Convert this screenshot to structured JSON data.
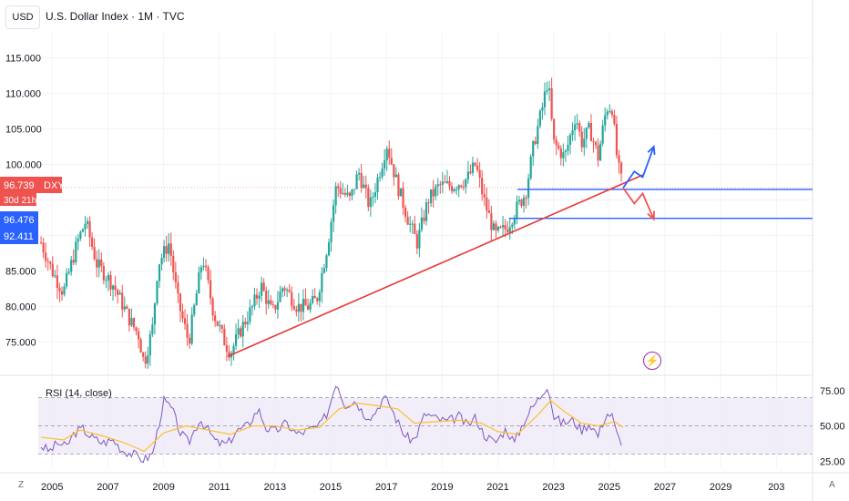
{
  "header": {
    "currency_button": "USD",
    "title": "U.S. Dollar Index · 1M · TVC"
  },
  "toolbar": {
    "z_label": "Z",
    "a_label": "A",
    "alert_icon": "lightning-icon"
  },
  "price_labels": {
    "current": {
      "value": "96.739",
      "ticker": "DXY",
      "countdown": "30d 21h"
    },
    "blue_a": "96.476",
    "blue_b": "92.411"
  },
  "colors": {
    "up": "#26a69a",
    "down": "#ef5350",
    "trendline": "#e53935",
    "level": "#2962ff",
    "rsi": "#7e57c2",
    "rsi_ma": "#fbc02d",
    "rsi_band": "#ede7f6",
    "arrow_up": "#2962ff",
    "arrow_down": "#ef5350"
  },
  "chart_data": [
    {
      "type": "candlestick",
      "title": "U.S. Dollar Index · 1M · TVC",
      "y_ticks": [
        75,
        80,
        85,
        90,
        95,
        100,
        105,
        110,
        115
      ],
      "y_tick_labels": [
        "75.000",
        "80.000",
        "85.000",
        "90.000",
        "95.000",
        "100.000",
        "105.000",
        "110.000",
        "115.000"
      ],
      "x_ticks": [
        "2005",
        "2007",
        "2009",
        "2011",
        "2013",
        "2015",
        "2017",
        "2019",
        "2021",
        "2023",
        "2025",
        "2027",
        "2029",
        "203"
      ],
      "ylim": [
        70.6,
        118.5
      ],
      "xlim": [
        2004.5,
        2032.3
      ],
      "close_path": [
        [
          2004.6,
          89
        ],
        [
          2005.0,
          85
        ],
        [
          2005.4,
          82
        ],
        [
          2005.9,
          89
        ],
        [
          2006.2,
          92
        ],
        [
          2006.6,
          86
        ],
        [
          2007.2,
          83
        ],
        [
          2007.8,
          78
        ],
        [
          2008.1,
          76
        ],
        [
          2008.3,
          72
        ],
        [
          2008.6,
          77
        ],
        [
          2008.8,
          86
        ],
        [
          2009.2,
          89
        ],
        [
          2009.5,
          81
        ],
        [
          2009.9,
          75
        ],
        [
          2010.4,
          87
        ],
        [
          2010.8,
          79
        ],
        [
          2011.2,
          75
        ],
        [
          2011.4,
          73.5
        ],
        [
          2011.8,
          77
        ],
        [
          2012.2,
          80
        ],
        [
          2012.5,
          83
        ],
        [
          2012.9,
          79
        ],
        [
          2013.3,
          83
        ],
        [
          2013.8,
          80
        ],
        [
          2014.2,
          80
        ],
        [
          2014.5,
          81
        ],
        [
          2014.9,
          89
        ],
        [
          2015.2,
          97
        ],
        [
          2015.7,
          95
        ],
        [
          2016.0,
          99
        ],
        [
          2016.4,
          94
        ],
        [
          2016.9,
          101
        ],
        [
          2017.0,
          103
        ],
        [
          2017.4,
          97
        ],
        [
          2017.8,
          92
        ],
        [
          2018.1,
          89
        ],
        [
          2018.5,
          95
        ],
        [
          2018.9,
          97
        ],
        [
          2019.4,
          97
        ],
        [
          2019.9,
          98
        ],
        [
          2020.2,
          100
        ],
        [
          2020.5,
          95
        ],
        [
          2020.9,
          90
        ],
        [
          2021.3,
          91
        ],
        [
          2021.7,
          94
        ],
        [
          2022.0,
          96
        ],
        [
          2022.3,
          103
        ],
        [
          2022.6,
          108
        ],
        [
          2022.8,
          112
        ],
        [
          2023.0,
          103
        ],
        [
          2023.4,
          101
        ],
        [
          2023.8,
          107
        ],
        [
          2024.0,
          103
        ],
        [
          2024.3,
          105
        ],
        [
          2024.6,
          101
        ],
        [
          2024.9,
          108
        ],
        [
          2025.1,
          108
        ],
        [
          2025.3,
          100
        ],
        [
          2025.5,
          96.7
        ]
      ],
      "current_price": 96.739,
      "horizontal_levels": [
        96.476,
        92.411
      ],
      "trendline": {
        "from": [
          2011.3,
          73.0
        ],
        "to": [
          2026.2,
          98.5
        ]
      },
      "projection": {
        "up": [
          [
            2025.5,
            96.7
          ],
          [
            2025.9,
            99.0
          ],
          [
            2026.2,
            98.2
          ],
          [
            2026.6,
            102.5
          ]
        ],
        "down": [
          [
            2025.5,
            96.7
          ],
          [
            2025.9,
            94.5
          ],
          [
            2026.2,
            95.9
          ],
          [
            2026.6,
            92.3
          ]
        ]
      }
    },
    {
      "type": "line",
      "title": "RSI (14, close)",
      "y_ticks": [
        25,
        50,
        75
      ],
      "y_tick_labels": [
        "25.00",
        "50.00",
        "75.00"
      ],
      "bands": [
        30,
        50,
        70
      ],
      "ylim": [
        20,
        82
      ],
      "series": [
        {
          "values_path": [
            [
              2004.6,
              36
            ],
            [
              2004.9,
              32
            ],
            [
              2005.2,
              38
            ],
            [
              2005.5,
              35
            ],
            [
              2005.8,
              45
            ],
            [
              2006.1,
              48
            ],
            [
              2006.4,
              42
            ],
            [
              2006.8,
              38
            ],
            [
              2007.2,
              40
            ],
            [
              2007.5,
              33
            ],
            [
              2007.9,
              30
            ],
            [
              2008.3,
              26
            ],
            [
              2008.6,
              30
            ],
            [
              2008.8,
              48
            ],
            [
              2009.0,
              68
            ],
            [
              2009.3,
              62
            ],
            [
              2009.6,
              45
            ],
            [
              2009.9,
              38
            ],
            [
              2010.3,
              55
            ],
            [
              2010.6,
              47
            ],
            [
              2010.9,
              38
            ],
            [
              2011.3,
              37
            ],
            [
              2011.6,
              46
            ],
            [
              2012.0,
              50
            ],
            [
              2012.4,
              62
            ],
            [
              2012.7,
              48
            ],
            [
              2013.0,
              46
            ],
            [
              2013.4,
              52
            ],
            [
              2013.8,
              44
            ],
            [
              2014.2,
              47
            ],
            [
              2014.6,
              50
            ],
            [
              2014.9,
              60
            ],
            [
              2015.2,
              82
            ],
            [
              2015.5,
              65
            ],
            [
              2015.9,
              68
            ],
            [
              2016.2,
              58
            ],
            [
              2016.5,
              57
            ],
            [
              2016.9,
              70
            ],
            [
              2017.1,
              66
            ],
            [
              2017.4,
              53
            ],
            [
              2017.7,
              42
            ],
            [
              2018.0,
              40
            ],
            [
              2018.4,
              59
            ],
            [
              2018.8,
              55
            ],
            [
              2019.2,
              53
            ],
            [
              2019.6,
              57
            ],
            [
              2019.9,
              50
            ],
            [
              2020.2,
              56
            ],
            [
              2020.5,
              44
            ],
            [
              2020.9,
              38
            ],
            [
              2021.3,
              48
            ],
            [
              2021.6,
              38
            ],
            [
              2021.9,
              52
            ],
            [
              2022.2,
              62
            ],
            [
              2022.5,
              70
            ],
            [
              2022.8,
              80
            ],
            [
              2023.0,
              57
            ],
            [
              2023.3,
              52
            ],
            [
              2023.7,
              54
            ],
            [
              2024.0,
              47
            ],
            [
              2024.3,
              52
            ],
            [
              2024.6,
              43
            ],
            [
              2024.9,
              59
            ],
            [
              2025.1,
              57
            ],
            [
              2025.3,
              42
            ],
            [
              2025.5,
              38
            ]
          ]
        },
        {
          "values_path": [
            [
              2004.6,
              42
            ],
            [
              2005.4,
              40
            ],
            [
              2006.0,
              47
            ],
            [
              2006.8,
              43
            ],
            [
              2007.6,
              38
            ],
            [
              2008.3,
              32
            ],
            [
              2009.0,
              45
            ],
            [
              2009.8,
              50
            ],
            [
              2010.6,
              47
            ],
            [
              2011.4,
              44
            ],
            [
              2012.2,
              50
            ],
            [
              2013.0,
              50
            ],
            [
              2013.8,
              47
            ],
            [
              2014.6,
              49
            ],
            [
              2015.3,
              62
            ],
            [
              2016.0,
              66
            ],
            [
              2016.8,
              64
            ],
            [
              2017.4,
              62
            ],
            [
              2018.0,
              52
            ],
            [
              2018.8,
              53
            ],
            [
              2019.6,
              54
            ],
            [
              2020.4,
              52
            ],
            [
              2021.0,
              46
            ],
            [
              2021.7,
              44
            ],
            [
              2022.4,
              57
            ],
            [
              2022.9,
              68
            ],
            [
              2023.4,
              60
            ],
            [
              2024.0,
              52
            ],
            [
              2024.6,
              50
            ],
            [
              2025.2,
              53
            ],
            [
              2025.5,
              49
            ]
          ]
        }
      ]
    }
  ]
}
